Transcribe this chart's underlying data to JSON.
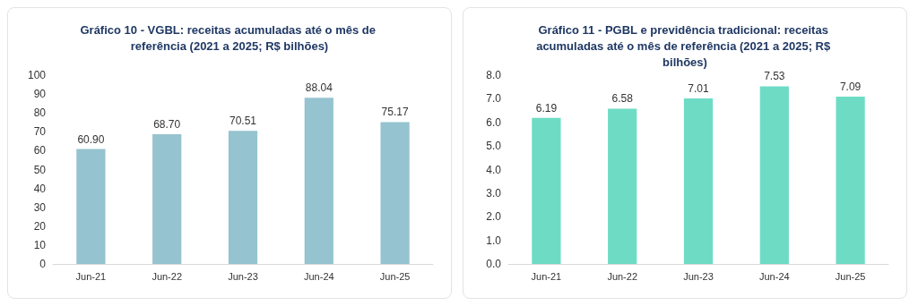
{
  "chart_data": [
    {
      "type": "bar",
      "title": "Gráfico 10 - VGBL: receitas acumuladas até o mês de referência (2021 a 2025; R$ bilhões)",
      "categories": [
        "Jun-21",
        "Jun-22",
        "Jun-23",
        "Jun-24",
        "Jun-25"
      ],
      "values": [
        60.9,
        68.7,
        70.51,
        88.04,
        75.17
      ],
      "value_labels": [
        "60.90",
        "68.70",
        "70.51",
        "88.04",
        "75.17"
      ],
      "color": "#95c3cf",
      "ylim": [
        0,
        100
      ],
      "yticks": [
        0,
        10,
        20,
        30,
        40,
        50,
        60,
        70,
        80,
        90,
        100
      ],
      "grid": false
    },
    {
      "type": "bar",
      "title": "Gráfico 11 - PGBL e previdência tradicional: receitas acumuladas até o mês de referência (2021 a 2025; R$ bilhões)",
      "categories": [
        "Jun-21",
        "Jun-22",
        "Jun-23",
        "Jun-24",
        "Jun-25"
      ],
      "values": [
        6.19,
        6.58,
        7.01,
        7.53,
        7.09
      ],
      "data_labels": true,
      "color": "#6edcc5",
      "ylim": [
        0,
        8
      ],
      "yticks": [
        {
          "value": 0,
          "label": "0.0"
        },
        {
          "value": 1,
          "label": "1.0"
        },
        {
          "value": 2,
          "label": "2.0"
        },
        {
          "value": 3,
          "label": "3.0"
        },
        {
          "value": 4,
          "label": "4.0"
        },
        {
          "value": 5,
          "label": "5.0"
        },
        {
          "value": 6,
          "label": "6.0"
        },
        {
          "value": 7,
          "label": "7.0"
        },
        {
          "value": 8,
          "label": "8.0"
        }
      ],
      "grid": false
    }
  ]
}
